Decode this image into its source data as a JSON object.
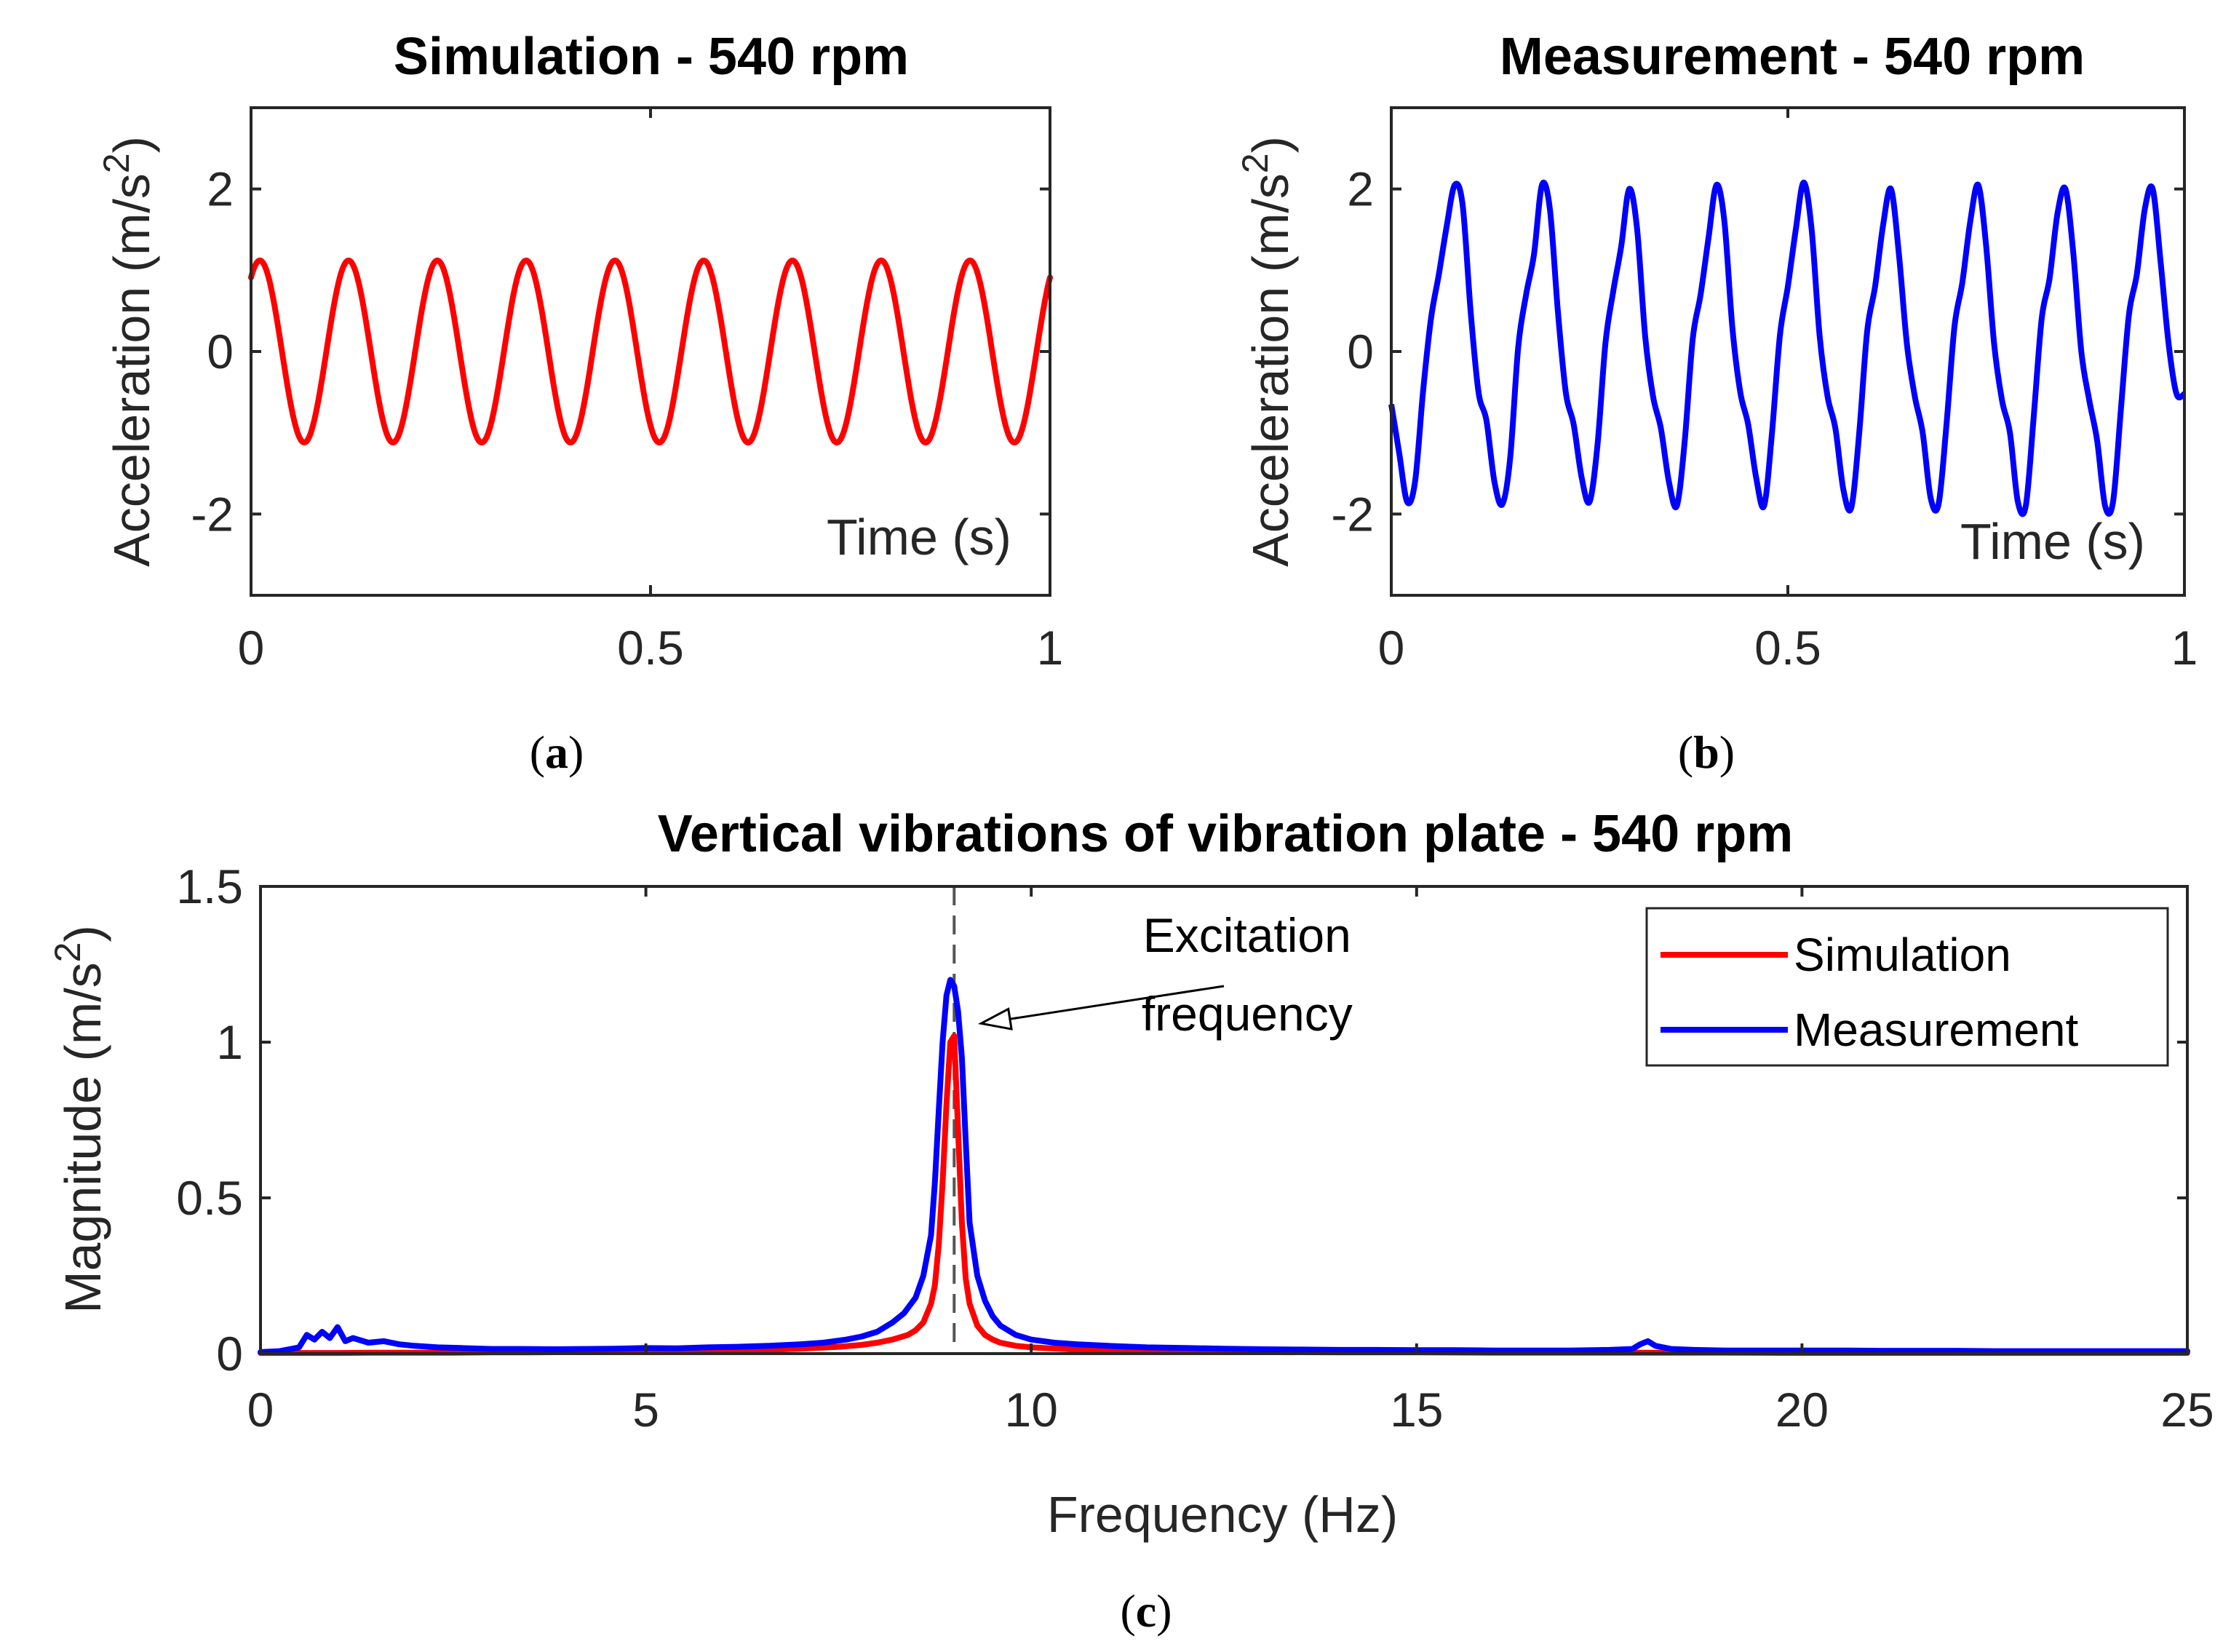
{
  "chart_data": [
    {
      "id": "a",
      "type": "line",
      "title": "Simulation - 540 rpm",
      "xlabel": "Time (s)",
      "ylabel": "Acceleration (m/s²)",
      "ylabel_base": "Acceleration (m/s",
      "ylabel_sup": "2",
      "ylabel_close": ")",
      "xlim": [
        0,
        1
      ],
      "ylim": [
        -3,
        3
      ],
      "xticks": [
        0,
        0.5,
        1
      ],
      "xtick_labels": [
        "0",
        "0.5",
        "1"
      ],
      "yticks": [
        -2,
        0,
        2
      ],
      "ytick_labels": [
        "-2",
        "0",
        "2"
      ],
      "grid": false,
      "caption": "a",
      "series": [
        {
          "name": "Simulation",
          "color": "#ff0000",
          "model": "sine",
          "amplitude": 1.12,
          "frequency_hz": 9.0,
          "phase_rad": 0.95,
          "peaks": [
            {
              "x": 0.01,
              "y": 1.12
            },
            {
              "x": 0.12,
              "y": 1.12
            },
            {
              "x": 0.23,
              "y": 1.12
            },
            {
              "x": 0.34,
              "y": 1.12
            },
            {
              "x": 0.45,
              "y": 1.12
            },
            {
              "x": 0.56,
              "y": 1.12
            },
            {
              "x": 0.67,
              "y": 1.12
            },
            {
              "x": 0.78,
              "y": 1.12
            },
            {
              "x": 0.89,
              "y": 1.12
            }
          ],
          "troughs": [
            {
              "x": 0.07,
              "y": -1.12
            },
            {
              "x": 0.18,
              "y": -1.12
            },
            {
              "x": 0.29,
              "y": -1.12
            },
            {
              "x": 0.4,
              "y": -1.12
            },
            {
              "x": 0.51,
              "y": -1.12
            },
            {
              "x": 0.62,
              "y": -1.12
            },
            {
              "x": 0.73,
              "y": -1.12
            },
            {
              "x": 0.84,
              "y": -1.12
            },
            {
              "x": 0.95,
              "y": -1.12
            }
          ]
        }
      ]
    },
    {
      "id": "b",
      "type": "line",
      "title": "Measurement - 540 rpm",
      "xlabel": "Time (s)",
      "ylabel": "Acceleration (m/s²)",
      "ylabel_base": "Acceleration (m/s",
      "ylabel_sup": "2",
      "ylabel_close": ")",
      "xlim": [
        0,
        1
      ],
      "ylim": [
        -3,
        3
      ],
      "xticks": [
        0,
        0.5,
        1
      ],
      "xtick_labels": [
        "0",
        "0.5",
        "1"
      ],
      "yticks": [
        -2,
        0,
        2
      ],
      "ytick_labels": [
        "-2",
        "0",
        "2"
      ],
      "grid": false,
      "caption": "b",
      "series": [
        {
          "name": "Measurement",
          "color": "#0000ff",
          "x": [
            0.0,
            0.01,
            0.02,
            0.03,
            0.04,
            0.05,
            0.06,
            0.07,
            0.08,
            0.09,
            0.1,
            0.11,
            0.12,
            0.13,
            0.14,
            0.15,
            0.16,
            0.17,
            0.18,
            0.19,
            0.2,
            0.21,
            0.22,
            0.23,
            0.24,
            0.25,
            0.26,
            0.27,
            0.28,
            0.29,
            0.3,
            0.31,
            0.32,
            0.33,
            0.34,
            0.35,
            0.36,
            0.37,
            0.38,
            0.39,
            0.4,
            0.41,
            0.42,
            0.43,
            0.44,
            0.45,
            0.46,
            0.47,
            0.48,
            0.49,
            0.5,
            0.51,
            0.52,
            0.53,
            0.54,
            0.55,
            0.56,
            0.57,
            0.58,
            0.59,
            0.6,
            0.61,
            0.62,
            0.63,
            0.64,
            0.65,
            0.66,
            0.67,
            0.68,
            0.69,
            0.7,
            0.71,
            0.72,
            0.73,
            0.74,
            0.75,
            0.76,
            0.77,
            0.78,
            0.79,
            0.8,
            0.81,
            0.82,
            0.83,
            0.84,
            0.85,
            0.86,
            0.87,
            0.88,
            0.89,
            0.9,
            0.91,
            0.92,
            0.93,
            0.94,
            0.95,
            0.96,
            0.97,
            0.98,
            0.99,
            1.0
          ],
          "y": [
            -0.65,
            -1.25,
            -1.85,
            -1.6,
            -0.5,
            0.4,
            0.95,
            1.55,
            2.05,
            1.8,
            0.5,
            -0.5,
            -0.85,
            -1.6,
            -1.88,
            -1.3,
            0.05,
            0.7,
            1.2,
            2.05,
            1.75,
            0.5,
            -0.5,
            -0.9,
            -1.55,
            -1.85,
            -1.15,
            0.1,
            0.75,
            1.3,
            2.0,
            1.5,
            0.2,
            -0.55,
            -0.95,
            -1.6,
            -1.9,
            -1.1,
            0.15,
            0.7,
            1.4,
            2.05,
            1.6,
            0.3,
            -0.5,
            -0.9,
            -1.55,
            -1.9,
            -1.0,
            0.2,
            0.8,
            1.5,
            2.08,
            1.5,
            0.2,
            -0.55,
            -0.95,
            -1.7,
            -1.92,
            -1.0,
            0.25,
            0.8,
            1.55,
            2.0,
            1.2,
            0.1,
            -0.55,
            -1.0,
            -1.8,
            -1.88,
            -0.9,
            0.3,
            0.85,
            1.6,
            2.05,
            1.3,
            0.1,
            -0.6,
            -1.0,
            -1.85,
            -1.9,
            -0.8,
            0.4,
            0.9,
            1.7,
            2.0,
            1.2,
            0.0,
            -0.6,
            -1.1,
            -1.9,
            -1.85,
            -0.7,
            0.45,
            0.95,
            1.75,
            2.0,
            1.1,
            0.1,
            -0.52,
            -0.52
          ]
        }
      ]
    },
    {
      "id": "c",
      "type": "line",
      "title": "Vertical vibrations of vibration plate - 540 rpm",
      "xlabel": "Frequency (Hz)",
      "ylabel": "Magnitude (m/s²)",
      "ylabel_base": "Magnitude (m/s",
      "ylabel_sup": "2",
      "ylabel_close": ")",
      "xlim": [
        0,
        25
      ],
      "ylim": [
        0,
        1.5
      ],
      "xticks": [
        0,
        5,
        10,
        15,
        20,
        25
      ],
      "xtick_labels": [
        "0",
        "5",
        "10",
        "15",
        "20",
        "25"
      ],
      "yticks": [
        0,
        0.5,
        1,
        1.5
      ],
      "ytick_labels": [
        "0",
        "0.5",
        "1",
        "1.5"
      ],
      "grid": false,
      "legend_position": "top-right",
      "caption": "c",
      "vline": {
        "x": 9.0,
        "style": "dashed",
        "color": "#555555"
      },
      "annotation": {
        "line1": "Excitation",
        "line2": "frequency",
        "arrow_target": {
          "x": 9.35,
          "y": 1.06
        },
        "arrow_start": {
          "x": 12.5,
          "y": 1.18
        },
        "text_anchor": {
          "x": 12.8,
          "y": 1.29
        }
      },
      "series": [
        {
          "name": "Simulation",
          "color": "#ff0000",
          "x": [
            0,
            0.5,
            1,
            1.5,
            2,
            2.5,
            3,
            3.5,
            4,
            4.5,
            5,
            5.5,
            6,
            6.5,
            7,
            7.5,
            7.8,
            8.0,
            8.2,
            8.4,
            8.5,
            8.6,
            8.7,
            8.75,
            8.8,
            8.85,
            8.9,
            8.95,
            9.0,
            9.05,
            9.1,
            9.15,
            9.2,
            9.3,
            9.4,
            9.5,
            9.6,
            9.8,
            10,
            10.5,
            11,
            12,
            13,
            14,
            15,
            16,
            17,
            18,
            19,
            20,
            21,
            22,
            23,
            24,
            25
          ],
          "y": [
            0.002,
            0.002,
            0.002,
            0.003,
            0.003,
            0.003,
            0.004,
            0.004,
            0.005,
            0.006,
            0.007,
            0.008,
            0.01,
            0.012,
            0.016,
            0.022,
            0.028,
            0.035,
            0.045,
            0.06,
            0.075,
            0.1,
            0.16,
            0.22,
            0.35,
            0.55,
            0.8,
            1.0,
            1.02,
            0.72,
            0.42,
            0.24,
            0.16,
            0.09,
            0.06,
            0.045,
            0.035,
            0.025,
            0.02,
            0.014,
            0.01,
            0.007,
            0.005,
            0.004,
            0.004,
            0.003,
            0.003,
            0.003,
            0.003,
            0.002,
            0.002,
            0.002,
            0.002,
            0.002,
            0.002
          ]
        },
        {
          "name": "Measurement",
          "color": "#0000ff",
          "x": [
            0,
            0.25,
            0.5,
            0.6,
            0.7,
            0.8,
            0.9,
            1.0,
            1.1,
            1.2,
            1.4,
            1.6,
            1.8,
            2.0,
            2.3,
            2.6,
            3.0,
            3.4,
            3.8,
            4.2,
            4.6,
            5.0,
            5.4,
            5.8,
            6.2,
            6.6,
            7.0,
            7.3,
            7.6,
            7.8,
            8.0,
            8.2,
            8.35,
            8.5,
            8.6,
            8.7,
            8.75,
            8.8,
            8.85,
            8.9,
            8.95,
            9.0,
            9.05,
            9.1,
            9.15,
            9.2,
            9.3,
            9.4,
            9.5,
            9.6,
            9.8,
            10,
            10.3,
            10.6,
            11,
            11.5,
            12,
            12.5,
            13,
            13.5,
            14,
            14.5,
            15,
            15.5,
            16,
            16.5,
            17,
            17.5,
            17.8,
            17.9,
            18.0,
            18.1,
            18.3,
            18.6,
            19,
            19.5,
            20,
            20.5,
            21,
            21.5,
            22,
            22.5,
            23,
            23.5,
            24,
            24.5,
            25
          ],
          "y": [
            0.005,
            0.008,
            0.02,
            0.06,
            0.045,
            0.07,
            0.05,
            0.085,
            0.04,
            0.05,
            0.035,
            0.04,
            0.03,
            0.025,
            0.02,
            0.018,
            0.015,
            0.015,
            0.014,
            0.015,
            0.016,
            0.018,
            0.017,
            0.02,
            0.022,
            0.025,
            0.03,
            0.035,
            0.045,
            0.055,
            0.07,
            0.1,
            0.13,
            0.18,
            0.25,
            0.38,
            0.55,
            0.78,
            1.0,
            1.15,
            1.2,
            1.18,
            1.1,
            0.95,
            0.68,
            0.42,
            0.25,
            0.17,
            0.12,
            0.09,
            0.06,
            0.045,
            0.035,
            0.03,
            0.025,
            0.02,
            0.018,
            0.016,
            0.014,
            0.013,
            0.012,
            0.012,
            0.011,
            0.011,
            0.01,
            0.01,
            0.01,
            0.012,
            0.015,
            0.03,
            0.04,
            0.025,
            0.015,
            0.012,
            0.01,
            0.01,
            0.01,
            0.01,
            0.009,
            0.009,
            0.009,
            0.008,
            0.008,
            0.008,
            0.008,
            0.008,
            0.008
          ]
        }
      ]
    }
  ]
}
